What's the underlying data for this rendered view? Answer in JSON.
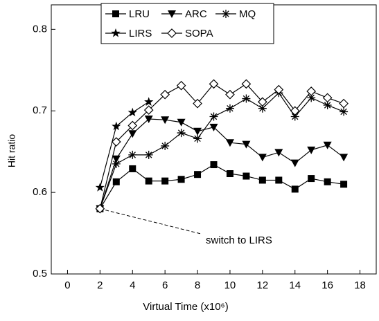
{
  "chart_data": {
    "type": "line",
    "xlabel": "Virtual Time (x10⁶)",
    "ylabel": "Hit ratio",
    "annotation": "switch to LIRS",
    "xlim": [
      -1,
      19
    ],
    "xticks": [
      0,
      2,
      4,
      6,
      8,
      10,
      12,
      14,
      16,
      18
    ],
    "ylim": [
      0.5,
      0.83
    ],
    "yticks": [
      0.5,
      0.6,
      0.7,
      0.8
    ],
    "series": [
      {
        "name": "LRU",
        "color": "#000000",
        "marker": "square",
        "x": [
          2,
          3,
          4,
          5,
          6,
          7,
          8,
          9,
          10,
          11,
          12,
          13,
          14,
          15,
          16,
          17
        ],
        "values": [
          0.58,
          0.613,
          0.629,
          0.614,
          0.614,
          0.616,
          0.622,
          0.634,
          0.623,
          0.62,
          0.615,
          0.615,
          0.604,
          0.617,
          0.613,
          0.61
        ]
      },
      {
        "name": "ARC",
        "color": "#000000",
        "marker": "triangle-down",
        "x": [
          2,
          3,
          4,
          5,
          6,
          7,
          8,
          9,
          10,
          11,
          12,
          13,
          14,
          15,
          16,
          17
        ],
        "values": [
          0.58,
          0.641,
          0.672,
          0.69,
          0.689,
          0.686,
          0.675,
          0.68,
          0.661,
          0.659,
          0.643,
          0.649,
          0.636,
          0.652,
          0.658,
          0.643
        ]
      },
      {
        "name": "MQ",
        "color": "#000000",
        "marker": "asterisk",
        "x": [
          2,
          3,
          4,
          5,
          6,
          7,
          8,
          9,
          10,
          11,
          12,
          13,
          14,
          15,
          16,
          17
        ],
        "values": [
          0.58,
          0.635,
          0.646,
          0.646,
          0.657,
          0.673,
          0.666,
          0.693,
          0.703,
          0.715,
          0.703,
          0.722,
          0.693,
          0.716,
          0.707,
          0.699
        ]
      },
      {
        "name": "LIRS",
        "color": "#000000",
        "marker": "star",
        "x": [
          2,
          3,
          4,
          5
        ],
        "values": [
          0.606,
          0.681,
          0.698,
          0.711
        ]
      },
      {
        "name": "SOPA",
        "color": "#000000",
        "marker": "diamond-open",
        "x": [
          2,
          3,
          4,
          5,
          6,
          7,
          8,
          9,
          10,
          11,
          12,
          13,
          14,
          15,
          16,
          17
        ],
        "values": [
          0.58,
          0.662,
          0.682,
          0.701,
          0.72,
          0.731,
          0.709,
          0.733,
          0.72,
          0.733,
          0.711,
          0.726,
          0.7,
          0.724,
          0.716,
          0.709
        ]
      }
    ]
  }
}
